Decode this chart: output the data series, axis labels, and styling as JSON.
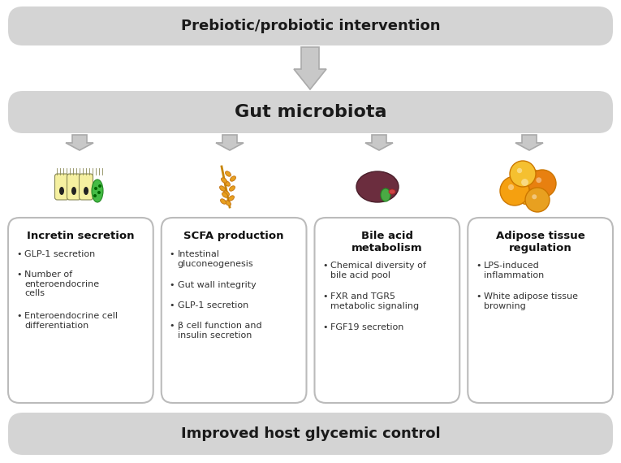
{
  "bg_color": "#ffffff",
  "banner_color": "#d4d4d4",
  "box_color": "#ffffff",
  "box_edge_color": "#bbbbbb",
  "arrow_color": "#c8c8c8",
  "arrow_edge_color": "#aaaaaa",
  "top_banner": "Prebiotic/probiotic intervention",
  "mid_banner": "Gut microbiota",
  "bot_banner": "Improved host glycemic control",
  "boxes": [
    {
      "title": "Incretin secretion",
      "title_lines": 1,
      "bullets": [
        "GLP-1 secretion",
        "Number of\nenteroendocrine\ncells",
        "Enteroendocrine cell\ndifferentiation"
      ]
    },
    {
      "title": "SCFA production",
      "title_lines": 1,
      "bullets": [
        "Intestinal\ngluconeogenesis",
        "Gut wall integrity",
        "GLP-1 secretion",
        "β cell function and\ninsulin secretion"
      ]
    },
    {
      "title": "Bile acid\nmetabolism",
      "title_lines": 2,
      "bullets": [
        "Chemical diversity of\nbile acid pool",
        "FXR and TGR5\nmetabolic signaling",
        "FGF19 secretion"
      ]
    },
    {
      "title": "Adipose tissue\nregulation",
      "title_lines": 2,
      "bullets": [
        "LPS-induced\ninflammation",
        "White adipose tissue\nbrowning"
      ]
    }
  ]
}
